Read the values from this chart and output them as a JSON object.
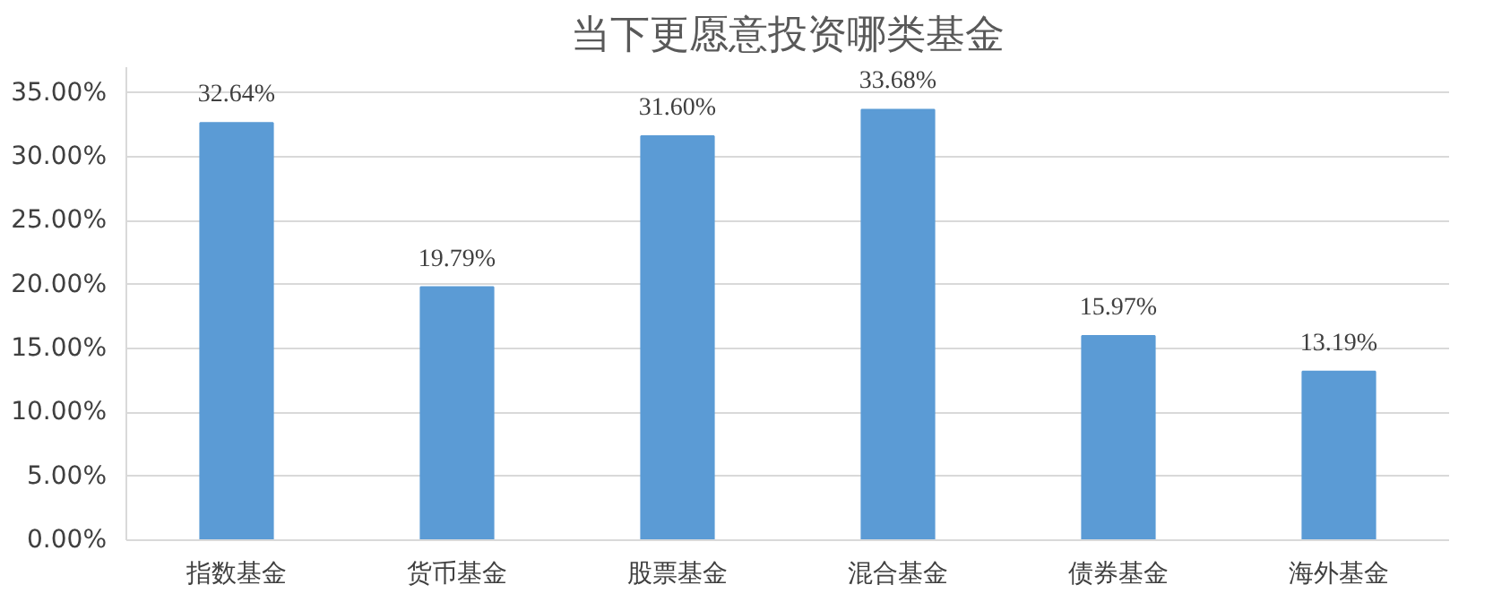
{
  "chart_data": {
    "type": "bar",
    "title": "当下更愿意投资哪类基金",
    "categories": [
      "指数基金",
      "货币基金",
      "股票基金",
      "混合基金",
      "债券基金",
      "海外基金"
    ],
    "values": [
      32.64,
      19.79,
      31.6,
      33.68,
      15.97,
      13.19
    ],
    "value_labels": [
      "32.64%",
      "19.79%",
      "31.60%",
      "33.68%",
      "15.97%",
      "13.19%"
    ],
    "color": "#5b9bd5",
    "ylim": [
      0,
      37
    ],
    "yticks": [
      {
        "value": 0,
        "label": "0.00%"
      },
      {
        "value": 5,
        "label": "5.00%"
      },
      {
        "value": 10,
        "label": "10.00%"
      },
      {
        "value": 15,
        "label": "15.00%"
      },
      {
        "value": 20,
        "label": "20.00%"
      },
      {
        "value": 25,
        "label": "25.00%"
      },
      {
        "value": 30,
        "label": "30.00%"
      },
      {
        "value": 35,
        "label": "35.00%"
      }
    ],
    "grid": "y"
  }
}
